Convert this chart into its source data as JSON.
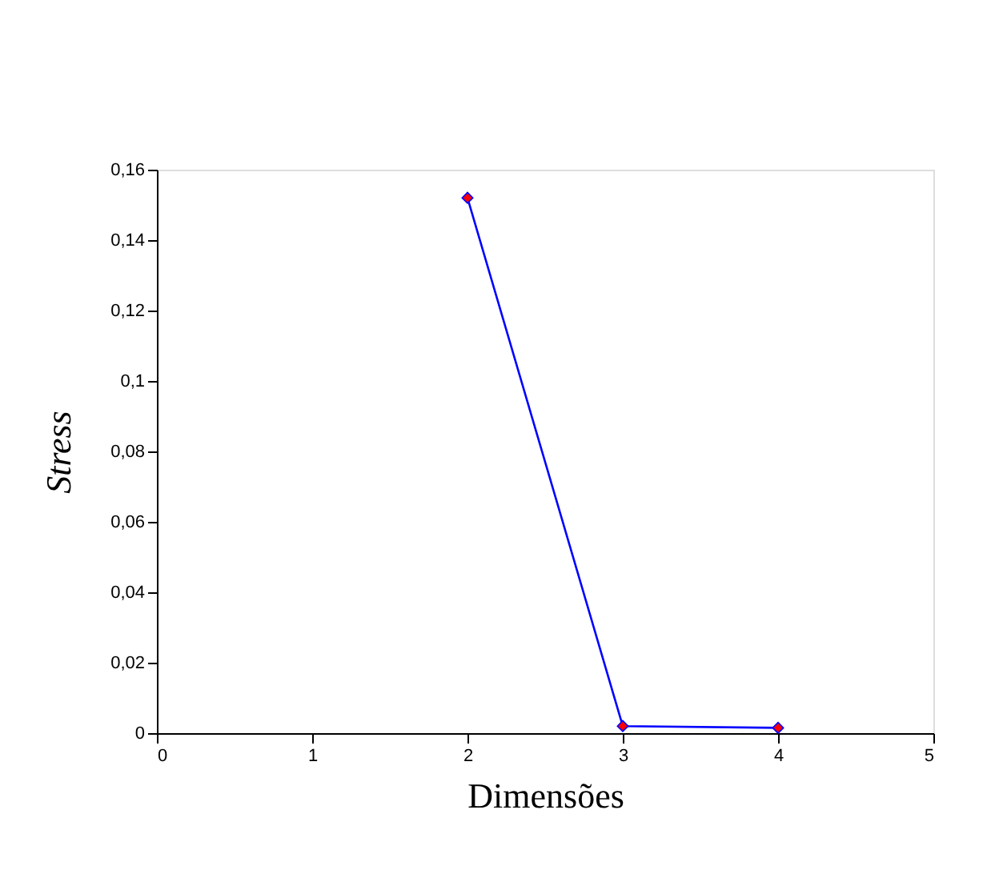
{
  "chart_data": {
    "type": "line",
    "xlabel": "Dimensões",
    "ylabel": "Stress",
    "x": [
      2,
      3,
      4
    ],
    "series": [
      {
        "color": "#0000ff",
        "colors": [
          "#ff0000",
          "#ff0000",
          "#ff0000"
        ],
        "values": [
          0.152,
          0.002,
          0.0015
        ]
      }
    ],
    "xlim": [
      0,
      5
    ],
    "xticks": [
      0,
      1,
      2,
      3,
      4,
      5
    ],
    "ylim": [
      0,
      0.16
    ],
    "yticks": [
      0,
      {
        "value": 0.02,
        "label": "0,02"
      },
      {
        "value": 0.04,
        "label": "0,04"
      },
      {
        "value": 0.06,
        "label": "0,06"
      },
      {
        "value": 0.08,
        "label": "0,08"
      },
      {
        "value": 0.1,
        "label": "0,1"
      },
      {
        "value": 0.12,
        "label": "0,12"
      },
      {
        "value": 0.14,
        "label": "0,14"
      },
      {
        "value": 0.16,
        "label": "0,16"
      }
    ],
    "marker": "diamond",
    "line_style": "solid",
    "grid": false
  }
}
